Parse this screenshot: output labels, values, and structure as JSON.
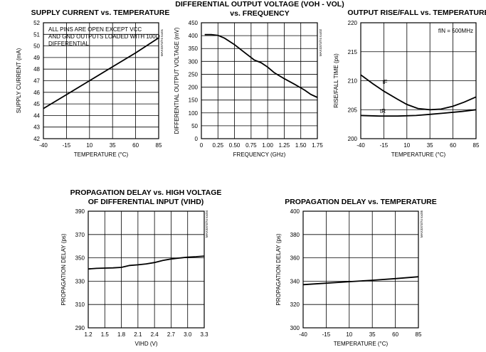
{
  "chart_data": [
    {
      "type": "line",
      "title": "SUPPLY CURRENT vs. TEMPERATURE",
      "xlabel": "TEMPERATURE (°C)",
      "ylabel": "SUPPLY CURRENT (mA)",
      "xlim": [
        -40,
        85
      ],
      "ylim": [
        42,
        52
      ],
      "x_ticks": [
        "-40",
        "-15",
        "10",
        "35",
        "60",
        "85"
      ],
      "y_ticks": [
        "42",
        "43",
        "44",
        "45",
        "46",
        "47",
        "48",
        "49",
        "50",
        "51",
        "52"
      ],
      "grid": true,
      "annotation": [
        "ALL PINS ARE OPEN EXCEPT VCC",
        "AND GND OUTPUTS LOADED WITH 100Ω",
        "DIFFERENTIAL"
      ],
      "part_mark": "MAX3373/74 toc01",
      "series": [
        {
          "x": [
            -40,
            -15,
            10,
            35,
            60,
            85
          ],
          "y": [
            44.6,
            45.8,
            47.0,
            48.2,
            49.4,
            50.7
          ]
        }
      ]
    },
    {
      "type": "line",
      "title": "DIFFERENTIAL OUTPUT VOLTAGE (VOH - VOL)",
      "subtitle": "vs. FREQUENCY",
      "xlabel": "FREQUENCY (GHz)",
      "ylabel": "DIFFERENTIAL OUTPUT VOLTAGE (mV)",
      "xlim": [
        0,
        1.75
      ],
      "ylim": [
        0,
        450
      ],
      "x_ticks": [
        "0",
        "0.25",
        "0.50",
        "0.75",
        "1.00",
        "1.25",
        "1.50",
        "1.75"
      ],
      "y_ticks": [
        "0",
        "50",
        "100",
        "150",
        "200",
        "250",
        "300",
        "350",
        "400",
        "450"
      ],
      "grid": true,
      "part_mark": "MAX3373/74 toc02",
      "series": [
        {
          "x": [
            0.05,
            0.15,
            0.25,
            0.35,
            0.5,
            0.65,
            0.8,
            0.9,
            1.0,
            1.1,
            1.25,
            1.4,
            1.55,
            1.65,
            1.75
          ],
          "y": [
            404,
            404,
            401,
            390,
            365,
            335,
            305,
            295,
            278,
            256,
            233,
            212,
            190,
            172,
            160
          ]
        }
      ]
    },
    {
      "type": "line",
      "title": "OUTPUT RISE/FALL vs. TEMPERATURE",
      "xlabel": "TEMPERATURE (°C)",
      "ylabel": "RISE/FALL TIME (ps)",
      "xlim": [
        -40,
        85
      ],
      "ylim": [
        200,
        220
      ],
      "x_ticks": [
        "-40",
        "-15",
        "10",
        "35",
        "60",
        "85"
      ],
      "y_ticks": [
        "200",
        "205",
        "210",
        "215",
        "220"
      ],
      "grid": true,
      "annotation": "fIN = 500MHz",
      "part_mark": "MAX3373/74 toc03",
      "series": [
        {
          "name": "tF",
          "x": [
            -40,
            -27,
            -15,
            0,
            10,
            22,
            35,
            47,
            60,
            72,
            85
          ],
          "y": [
            211.0,
            209.5,
            208.2,
            206.8,
            205.9,
            205.2,
            205.0,
            205.1,
            205.6,
            206.3,
            207.2
          ]
        },
        {
          "name": "tR",
          "x": [
            -40,
            -20,
            0,
            20,
            35,
            50,
            70,
            85
          ],
          "y": [
            204.0,
            203.9,
            203.9,
            204.0,
            204.2,
            204.4,
            204.7,
            205.0
          ]
        }
      ]
    },
    {
      "type": "line",
      "title": "PROPAGATION DELAY vs. HIGH VOLTAGE",
      "subtitle": "OF DIFFERENTIAL INPUT (VIHD)",
      "xlabel": "VIHD (V)",
      "ylabel": "PROPAGATION DELAY (ps)",
      "xlim": [
        1.2,
        3.3
      ],
      "ylim": [
        290,
        390
      ],
      "x_ticks": [
        "1.2",
        "1.5",
        "1.8",
        "2.1",
        "2.4",
        "2.7",
        "3.0",
        "3.3"
      ],
      "y_ticks": [
        "290",
        "310",
        "330",
        "350",
        "370",
        "390"
      ],
      "grid": true,
      "part_mark": "MAX3373/74 toc04",
      "series": [
        {
          "x": [
            1.2,
            1.35,
            1.5,
            1.65,
            1.8,
            1.95,
            2.1,
            2.25,
            2.4,
            2.55,
            2.7,
            2.85,
            3.0,
            3.15,
            3.3
          ],
          "y": [
            340.5,
            341.0,
            341.2,
            341.4,
            341.8,
            343.5,
            344.0,
            344.8,
            346.0,
            347.8,
            349.0,
            349.8,
            350.6,
            351.0,
            351.5
          ]
        }
      ]
    },
    {
      "type": "line",
      "title": "PROPAGATION DELAY vs. TEMPERATURE",
      "xlabel": "TEMPERATURE (°C)",
      "ylabel": "PROPAGATION DELAY (ps)",
      "xlim": [
        -40,
        85
      ],
      "ylim": [
        300,
        400
      ],
      "x_ticks": [
        "-40",
        "-15",
        "10",
        "35",
        "60",
        "85"
      ],
      "y_ticks": [
        "300",
        "320",
        "340",
        "360",
        "380",
        "400"
      ],
      "grid": true,
      "part_mark": "MAX3373/74 toc05",
      "series": [
        {
          "x": [
            -40,
            -15,
            10,
            35,
            60,
            85
          ],
          "y": [
            337.0,
            338.3,
            339.6,
            340.8,
            342.2,
            343.8
          ]
        }
      ]
    }
  ]
}
